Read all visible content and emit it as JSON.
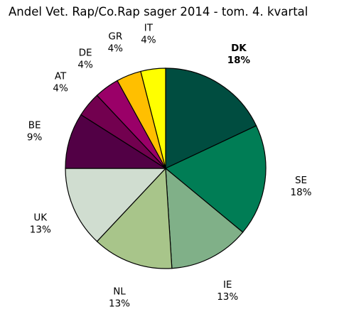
{
  "chart_data": {
    "type": "pie",
    "title": "Andel Vet. Rap/Co.Rap sager 2014 - tom. 4. kvartal",
    "slices": [
      {
        "label": "DK",
        "pct_label": "18%",
        "value": 18,
        "color": "#004d40",
        "bold": true
      },
      {
        "label": "SE",
        "pct_label": "18%",
        "value": 18,
        "color": "#007d55",
        "bold": false
      },
      {
        "label": "IE",
        "pct_label": "13%",
        "value": 13,
        "color": "#80b088",
        "bold": false
      },
      {
        "label": "NL",
        "pct_label": "13%",
        "value": 13,
        "color": "#a8c58a",
        "bold": false
      },
      {
        "label": "UK",
        "pct_label": "13%",
        "value": 13,
        "color": "#d0ddd0",
        "bold": false
      },
      {
        "label": "BE",
        "pct_label": "9%",
        "value": 9,
        "color": "#520045",
        "bold": false
      },
      {
        "label": "AT",
        "pct_label": "4%",
        "value": 4,
        "color": "#72004f",
        "bold": false
      },
      {
        "label": "DE",
        "pct_label": "4%",
        "value": 4,
        "color": "#9a0068",
        "bold": false
      },
      {
        "label": "GR",
        "pct_label": "4%",
        "value": 4,
        "color": "#ffbf00",
        "bold": false
      },
      {
        "label": "IT",
        "pct_label": "4%",
        "value": 4,
        "color": "#ffff00",
        "bold": false
      }
    ]
  }
}
